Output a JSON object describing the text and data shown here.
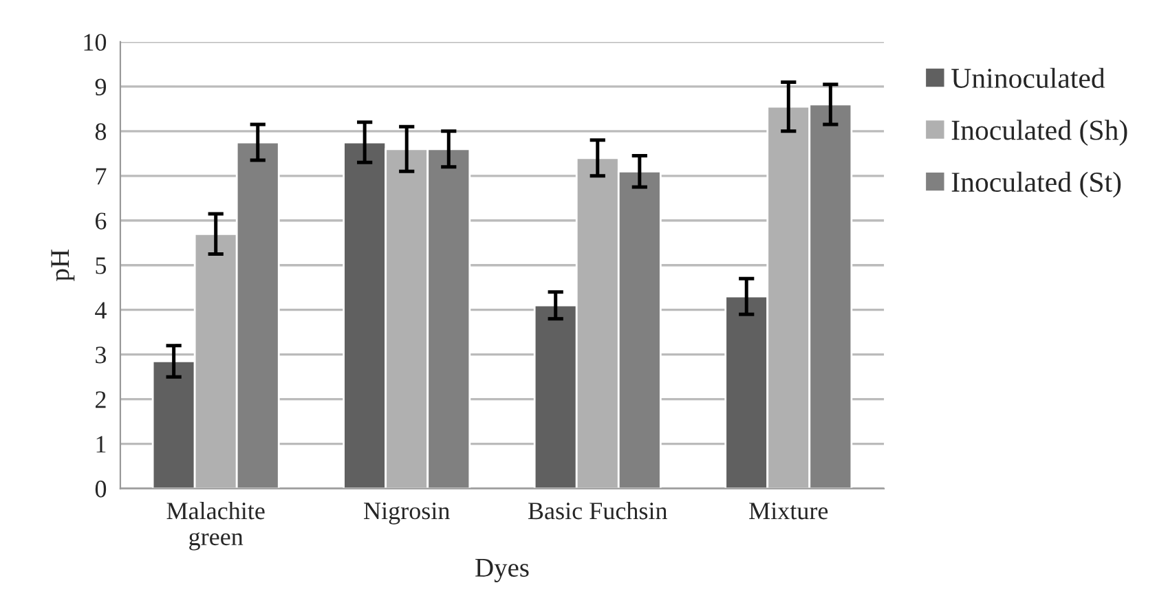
{
  "chart_data": {
    "type": "bar",
    "xlabel": "Dyes",
    "ylabel": "pH",
    "categories": [
      "Malachite\ngreen",
      "Nigrosin",
      "Basic Fuchsin",
      "Mixture"
    ],
    "series": [
      {
        "name": "Uninoculated",
        "color": "#606060",
        "values": [
          2.85,
          7.75,
          4.1,
          4.3
        ],
        "errors": [
          0.35,
          0.45,
          0.3,
          0.4
        ]
      },
      {
        "name": "Inoculated (Sh)",
        "color": "#b0b0b0",
        "values": [
          5.7,
          7.6,
          7.4,
          8.55
        ],
        "errors": [
          0.45,
          0.5,
          0.4,
          0.55
        ]
      },
      {
        "name": "Inoculated (St)",
        "color": "#808080",
        "values": [
          7.75,
          7.6,
          7.1,
          8.6
        ],
        "errors": [
          0.4,
          0.4,
          0.35,
          0.45
        ]
      }
    ],
    "ylim": [
      0,
      10
    ],
    "yticks": [
      0,
      1,
      2,
      3,
      4,
      5,
      6,
      7,
      8,
      9,
      10
    ],
    "grid": "y",
    "legend": "top right"
  }
}
